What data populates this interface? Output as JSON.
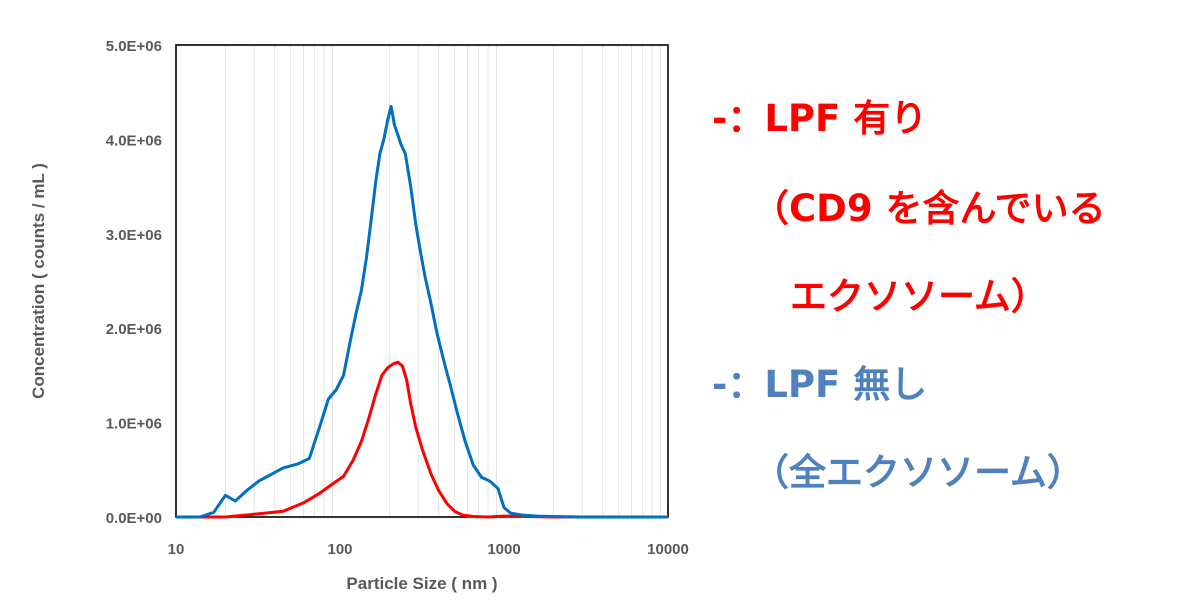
{
  "chart_data": {
    "type": "line",
    "xscale": "log",
    "xlim": [
      10,
      10000
    ],
    "ylim": [
      0,
      5000000
    ],
    "xlabel": "Particle Size ( nm )",
    "ylabel": "Concentration ( counts / mL )",
    "x_ticks": [
      "10",
      "100",
      "1000",
      "10000"
    ],
    "y_ticks": [
      "0.0E+00",
      "1.0E+06",
      "2.0E+06",
      "3.0E+06",
      "4.0E+06",
      "5.0E+06"
    ],
    "grid": "vertical log minor gridlines",
    "series": [
      {
        "name": "LPF 無し",
        "color": "#0070c0",
        "x": [
          10,
          14,
          17,
          20,
          23,
          27,
          32,
          38,
          45,
          55,
          65,
          75,
          85,
          95,
          105,
          115,
          125,
          135,
          145,
          155,
          165,
          175,
          185,
          195,
          205,
          215,
          225,
          235,
          250,
          270,
          290,
          310,
          330,
          360,
          390,
          430,
          470,
          520,
          580,
          650,
          730,
          820,
          920,
          1000,
          1100,
          1300,
          1600,
          2000,
          3000,
          5000,
          10000
        ],
        "y": [
          0,
          0,
          50000,
          230000,
          170000,
          280000,
          380000,
          450000,
          520000,
          560000,
          620000,
          950000,
          1250000,
          1350000,
          1500000,
          1850000,
          2150000,
          2400000,
          2750000,
          3150000,
          3550000,
          3850000,
          4000000,
          4200000,
          4350000,
          4150000,
          4050000,
          3950000,
          3850000,
          3500000,
          3100000,
          2800000,
          2550000,
          2250000,
          1950000,
          1650000,
          1400000,
          1100000,
          800000,
          550000,
          420000,
          380000,
          300000,
          100000,
          40000,
          20000,
          10000,
          5000,
          0,
          0,
          0
        ]
      },
      {
        "name": "LPF 有り",
        "color": "#ff0000",
        "x": [
          10,
          20,
          30,
          45,
          60,
          75,
          90,
          105,
          120,
          135,
          150,
          165,
          180,
          195,
          210,
          225,
          240,
          255,
          270,
          290,
          320,
          360,
          400,
          450,
          500,
          560,
          650,
          800,
          1000,
          2000,
          5000,
          10000
        ],
        "y": [
          0,
          0,
          30000,
          60000,
          150000,
          250000,
          350000,
          430000,
          600000,
          800000,
          1050000,
          1300000,
          1500000,
          1580000,
          1620000,
          1640000,
          1600000,
          1450000,
          1200000,
          950000,
          700000,
          450000,
          280000,
          140000,
          60000,
          20000,
          5000,
          0,
          10000,
          0,
          0,
          0
        ]
      }
    ]
  },
  "legend": {
    "red_line1": "-：LPF 有り",
    "red_line2": "（CD9 を含んでいる",
    "red_line3": "エクソソーム）",
    "blue_line1": "-：LPF 無し",
    "blue_line2": "（全エクソソーム）"
  },
  "colors": {
    "red_text": "#ff0000",
    "blue_text": "#4f81bd",
    "axis_text": "#595959"
  }
}
